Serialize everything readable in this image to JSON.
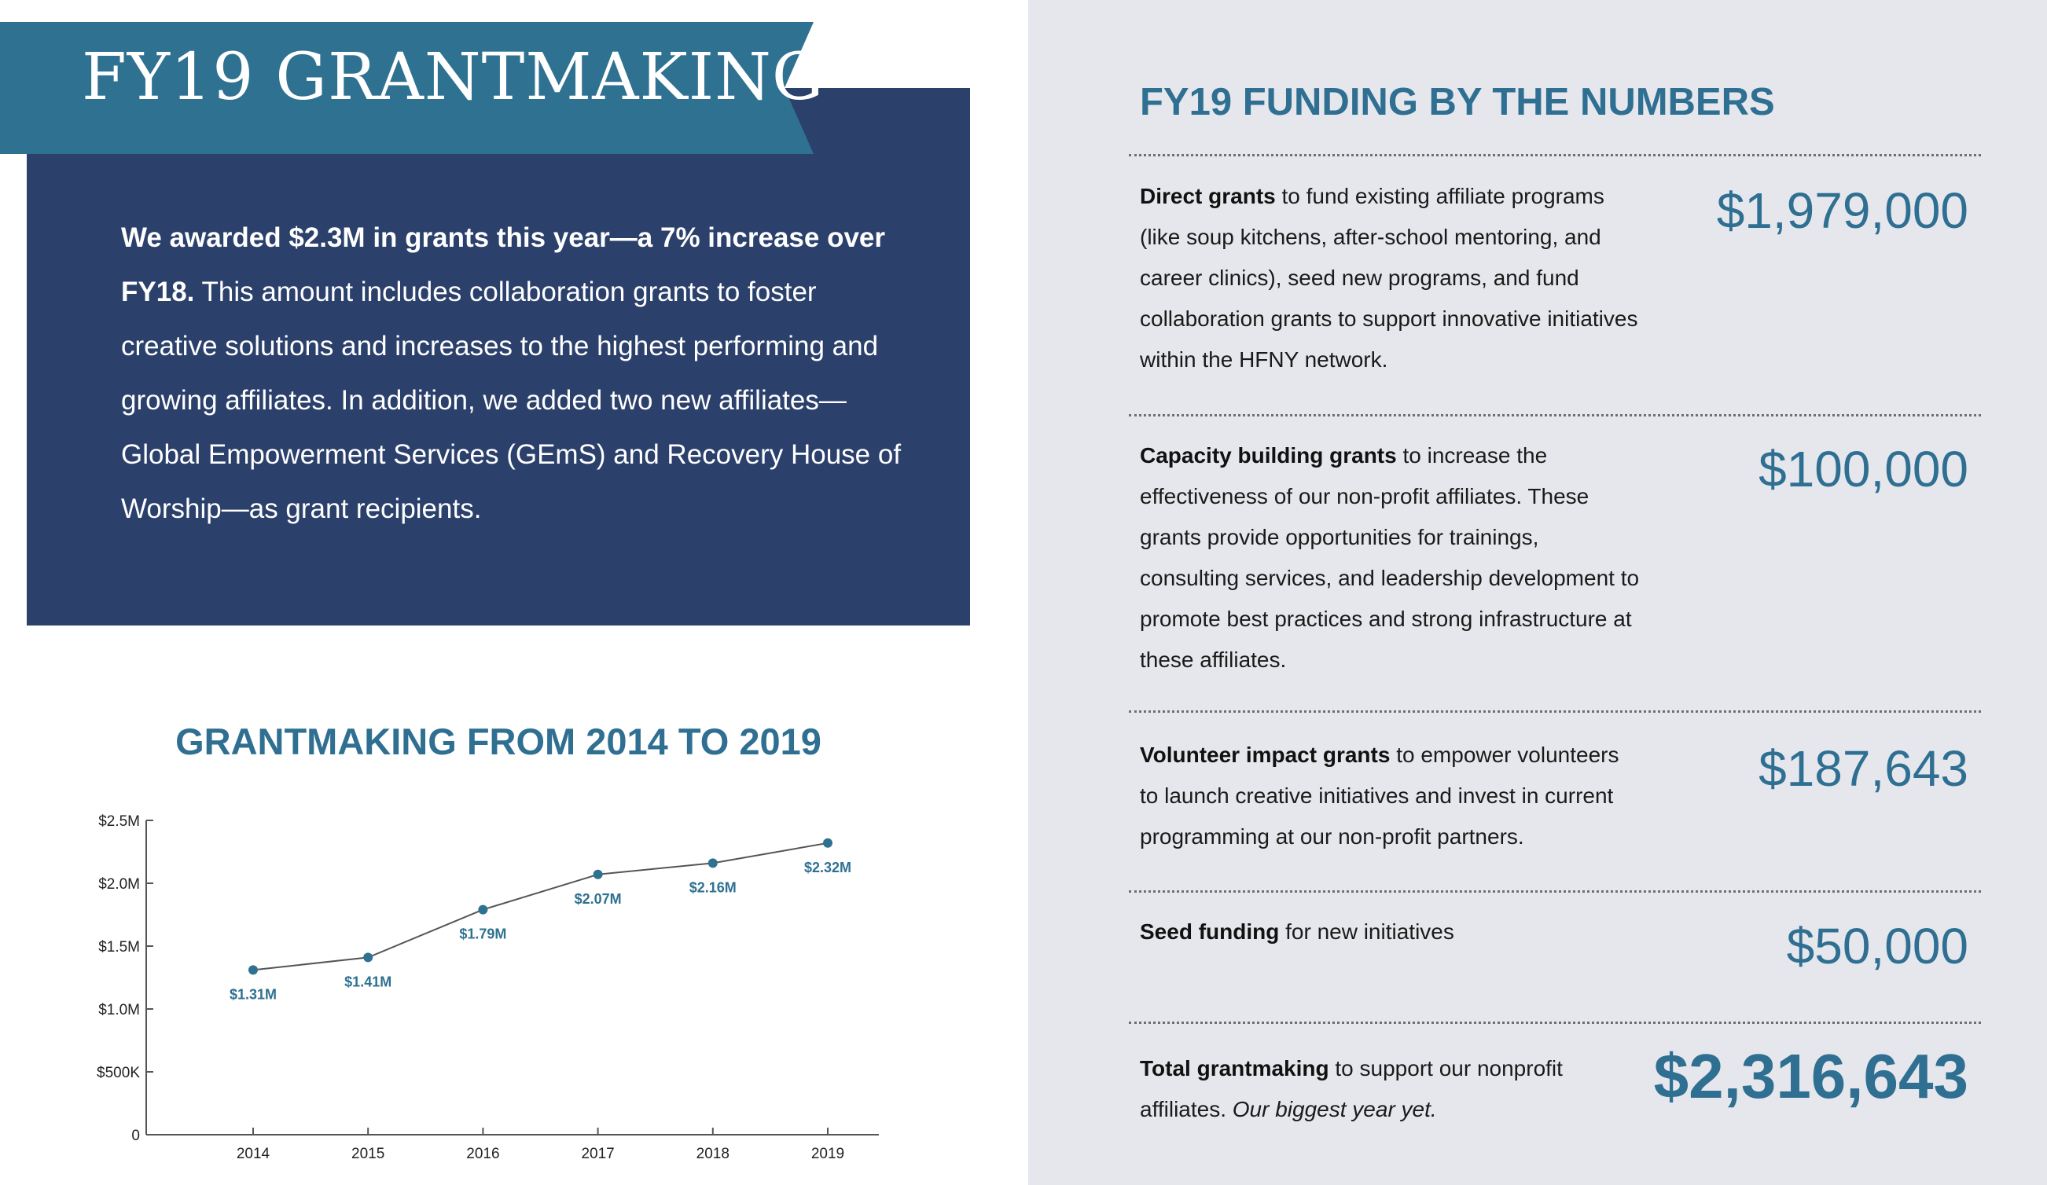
{
  "header": {
    "title": "FY19 GRANTMAKING"
  },
  "intro": {
    "lead_bold": "We awarded $2.3M in grants this year—a 7% increase over FY18.",
    "body": " This amount includes collaboration grants to foster creative solutions and increases to the highest performing and growing affiliates. In addition, we added two new affiliates—Global Empowerment Services (GEmS) and Recovery House of Worship—as grant recipients."
  },
  "chart_heading": "GRANTMAKING FROM 2014 TO 2019",
  "chart_data": {
    "type": "line",
    "title": "GRANTMAKING FROM 2014 TO 2019",
    "x": [
      "2014",
      "2015",
      "2016",
      "2017",
      "2018",
      "2019"
    ],
    "values": [
      1.31,
      1.41,
      1.79,
      2.07,
      2.16,
      2.32
    ],
    "labels": [
      "$1.31M",
      "$1.41M",
      "$1.79M",
      "$2.07M",
      "$2.16M",
      "$2.32M"
    ],
    "ylim": [
      0,
      2.5
    ],
    "yticks": [
      0,
      0.5,
      1.0,
      1.5,
      2.0,
      2.5
    ],
    "ytick_labels": [
      "0",
      "$500K",
      "$1.0M",
      "$1.5M",
      "$2.0M",
      "$2.5M"
    ],
    "xlabel": "",
    "ylabel": "",
    "grid": false,
    "colors": {
      "line": "#555555",
      "marker": "#2f7191",
      "label": "#2f7191"
    }
  },
  "numbers": {
    "heading": "FY19 FUNDING BY THE NUMBERS",
    "rows": [
      {
        "label_bold": "Direct grants",
        "description": " to fund existing affiliate programs (like soup kitchens, after-school mentoring, and career clinics), seed new programs, and fund collaboration grants to support innovative initiatives within the HFNY network.",
        "amount": "$1,979,000"
      },
      {
        "label_bold": "Capacity building grants",
        "description": " to increase the effectiveness of our non-profit affiliates. These grants provide opportunities for trainings, consulting services, and leadership development to promote best practices and strong infrastructure at these affiliates.",
        "amount": "$100,000"
      },
      {
        "label_bold": "Volunteer impact grants",
        "description": " to empower volunteers to launch creative initiatives and invest in current programming at our non-profit partners.",
        "amount": "$187,643"
      },
      {
        "label_bold": "Seed funding",
        "description": " for new initiatives",
        "amount": "$50,000"
      }
    ],
    "total": {
      "label_bold": "Total grantmaking",
      "description": " to support our nonprofit affiliates. ",
      "italic": "Our biggest year yet.",
      "amount": "$2,316,643"
    }
  },
  "colors": {
    "banner": "#2f7191",
    "intro_box": "#2b406b",
    "accent": "#2f6f92",
    "panel_bg": "#e6e7ec"
  }
}
